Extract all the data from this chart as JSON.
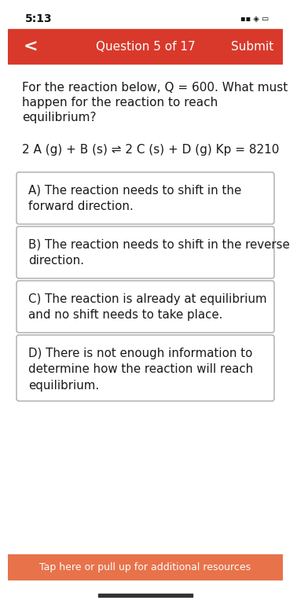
{
  "time": "5:13",
  "nav_bar_color": "#d9392b",
  "nav_text": "Question 5 of 17",
  "nav_submit": "Submit",
  "nav_back": "<",
  "bg_color": "#ffffff",
  "question_lines": [
    "For the reaction below, Q = 600. What must",
    "happen for the reaction to reach",
    "equilibrium?"
  ],
  "reaction_text": "2 A (g) + B (s) ⇌ 2 C (s) + D (g) Kp = 8210",
  "options": [
    "A) The reaction needs to shift in the\nforward direction.",
    "B) The reaction needs to shift in the reverse\ndirection.",
    "C) The reaction is already at equilibrium\nand no shift needs to take place.",
    "D) There is not enough information to\ndetermine how the reaction will reach\nequilibrium."
  ],
  "bottom_bar_color": "#e8724a",
  "bottom_text": "Tap here or pull up for additional resources",
  "text_color": "#1a1a1a",
  "box_border_color": "#aaaaaa",
  "font_size_question": 11.0,
  "font_size_reaction": 11.0,
  "font_size_option": 10.8,
  "font_size_nav": 11.0,
  "font_size_status": 10.0,
  "font_size_bottom": 9.0
}
